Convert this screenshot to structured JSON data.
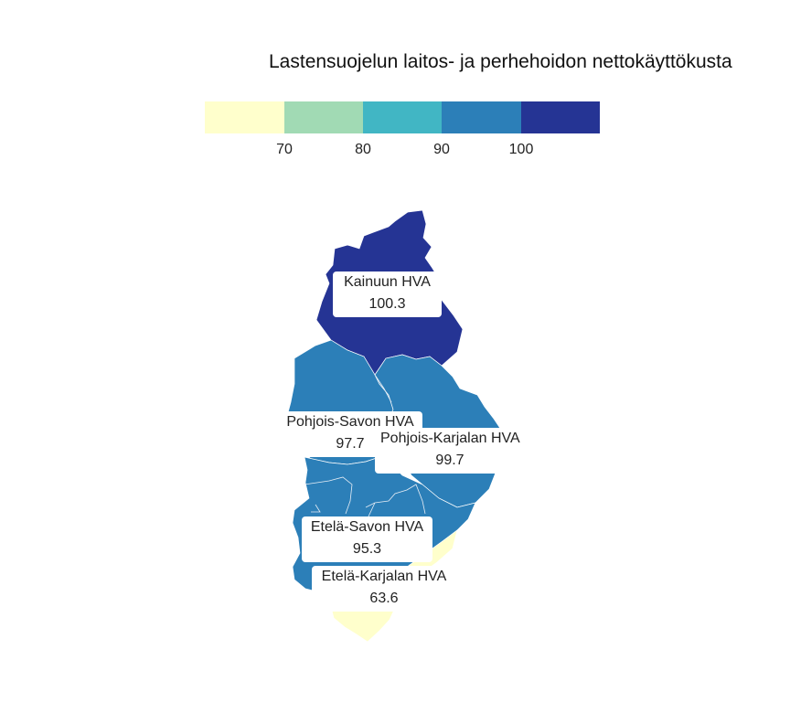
{
  "map": {
    "title": "Lastensuojelun laitos- ja perhehoidon nettokäyttökusta",
    "legend": {
      "ticks": [
        "70",
        "80",
        "90",
        "100"
      ],
      "colors": [
        "#ffffcc",
        "#a1dab4",
        "#41b6c4",
        "#2c7fb8",
        "#253494"
      ]
    },
    "regions": [
      {
        "name": "Kainuun HVA",
        "value": "100.3",
        "color": "#253494"
      },
      {
        "name": "Pohjois-Savon HVA",
        "value": "97.7",
        "color": "#2c7fb8"
      },
      {
        "name": "Pohjois-Karjalan HVA",
        "value": "99.7",
        "color": "#2c7fb8"
      },
      {
        "name": "Etelä-Savon HVA",
        "value": "95.3",
        "color": "#2c7fb8"
      },
      {
        "name": "Etelä-Karjalan HVA",
        "value": "63.6",
        "color": "#ffffcc"
      }
    ]
  }
}
